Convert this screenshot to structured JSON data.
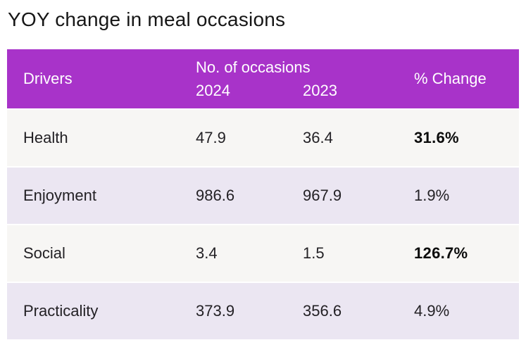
{
  "title": "YOY change in meal occasions",
  "colors": {
    "header_bg": "#a833c9",
    "header_text": "#ffffff",
    "row_odd_bg": "#f7f6f4",
    "row_even_bg": "#ebe6f2",
    "body_text": "#232125"
  },
  "table": {
    "header": {
      "drivers_label": "Drivers",
      "occasions_group_label": "No. of occasions",
      "year_2024": "2024",
      "year_2023": "2023",
      "pct_change_label": "% Change"
    },
    "rows": [
      {
        "driver": "Health",
        "y2024": "47.9",
        "y2023": "36.4",
        "pct_change": "31.6%",
        "emphasized": true
      },
      {
        "driver": "Enjoyment",
        "y2024": "986.6",
        "y2023": "967.9",
        "pct_change": "1.9%",
        "emphasized": false
      },
      {
        "driver": "Social",
        "y2024": "3.4",
        "y2023": "1.5",
        "pct_change": "126.7%",
        "emphasized": true
      },
      {
        "driver": "Practicality",
        "y2024": "373.9",
        "y2023": "356.6",
        "pct_change": "4.9%",
        "emphasized": false
      }
    ]
  },
  "chart_data": {
    "type": "table",
    "title": "YOY change in meal occasions",
    "columns": [
      "Drivers",
      "No. of occasions 2024",
      "No. of occasions 2023",
      "% Change"
    ],
    "rows": [
      [
        "Health",
        47.9,
        36.4,
        "31.6%"
      ],
      [
        "Enjoyment",
        986.6,
        967.9,
        "1.9%"
      ],
      [
        "Social",
        3.4,
        1.5,
        "126.7%"
      ],
      [
        "Practicality",
        373.9,
        356.6,
        "4.9%"
      ]
    ],
    "notes": "Emphasized (bold) % Change values: Health 31.6%, Social 126.7%"
  }
}
